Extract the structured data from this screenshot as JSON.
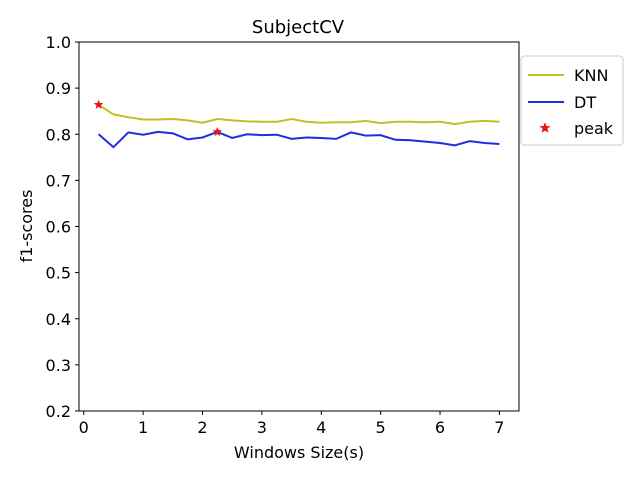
{
  "chart_data": {
    "type": "line",
    "title": "SubjectCV",
    "xlabel": "Windows Size(s)",
    "ylabel": "f1-scores",
    "xlim": [
      -0.08,
      7.33
    ],
    "ylim": [
      0.2,
      1.0
    ],
    "xticks": [
      0,
      1,
      2,
      3,
      4,
      5,
      6,
      7
    ],
    "yticks": [
      0.2,
      0.3,
      0.4,
      0.5,
      0.6,
      0.7,
      0.8,
      0.9,
      1.0
    ],
    "xtick_labels": [
      "0",
      "1",
      "2",
      "3",
      "4",
      "5",
      "6",
      "7"
    ],
    "ytick_labels": [
      "0.2",
      "0.3",
      "0.4",
      "0.5",
      "0.6",
      "0.7",
      "0.8",
      "0.9",
      "1.0"
    ],
    "grid": false,
    "legend_position": "outside-right",
    "x": [
      0.25,
      0.5,
      0.75,
      1.0,
      1.25,
      1.5,
      1.75,
      2.0,
      2.25,
      2.5,
      2.75,
      3.0,
      3.25,
      3.5,
      3.75,
      4.0,
      4.25,
      4.5,
      4.75,
      5.0,
      5.25,
      5.5,
      5.75,
      6.0,
      6.25,
      6.5,
      6.75,
      7.0
    ],
    "series": [
      {
        "name": "KNN",
        "color": "#bfbf2a",
        "values": [
          0.864,
          0.843,
          0.837,
          0.832,
          0.832,
          0.833,
          0.83,
          0.825,
          0.833,
          0.83,
          0.828,
          0.827,
          0.827,
          0.833,
          0.827,
          0.825,
          0.826,
          0.826,
          0.829,
          0.824,
          0.827,
          0.827,
          0.826,
          0.827,
          0.822,
          0.827,
          0.829,
          0.827
        ]
      },
      {
        "name": "DT",
        "color": "#1f2ee0",
        "values": [
          0.8,
          0.772,
          0.804,
          0.799,
          0.805,
          0.802,
          0.789,
          0.793,
          0.805,
          0.792,
          0.8,
          0.798,
          0.799,
          0.79,
          0.793,
          0.792,
          0.79,
          0.804,
          0.797,
          0.798,
          0.788,
          0.787,
          0.784,
          0.781,
          0.776,
          0.785,
          0.781,
          0.779
        ]
      }
    ],
    "peaks": {
      "name": "peak",
      "color": "#ee1111",
      "points": [
        {
          "x": 0.25,
          "y": 0.864
        },
        {
          "x": 2.25,
          "y": 0.805
        }
      ]
    }
  }
}
